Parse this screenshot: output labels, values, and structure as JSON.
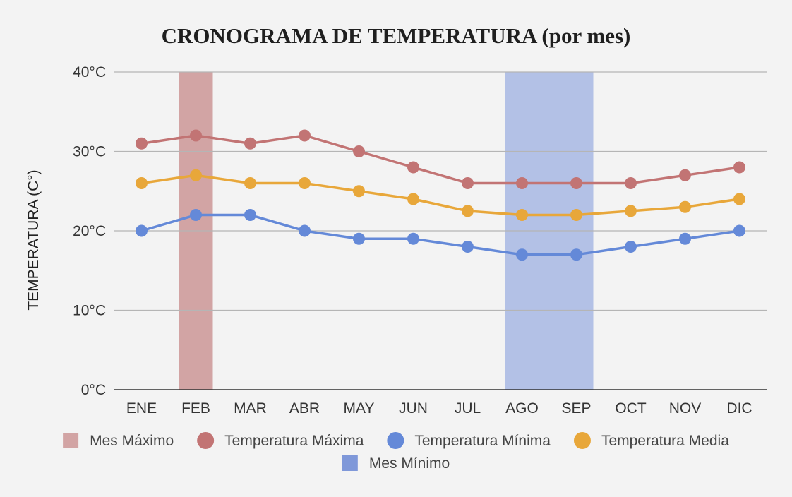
{
  "chart_data": {
    "type": "line",
    "title": "CRONOGRAMA DE TEMPERATURA (por mes)",
    "ylabel": "TEMPERATURA (C°)",
    "xlabel": "",
    "categories": [
      "ENE",
      "FEB",
      "MAR",
      "ABR",
      "MAY",
      "JUN",
      "JUL",
      "AGO",
      "SEP",
      "OCT",
      "NOV",
      "DIC"
    ],
    "ylim": [
      0,
      40
    ],
    "yticks": [
      0,
      10,
      20,
      30,
      40
    ],
    "ytick_labels": [
      "0°C",
      "10°C",
      "20°C",
      "30°C",
      "40°C"
    ],
    "grid": true,
    "legend_position": "bottom",
    "series": [
      {
        "name": "Temperatura Máxima",
        "color": "#c27474",
        "values": [
          31,
          32,
          31,
          32,
          30,
          28,
          26,
          26,
          26,
          26,
          27,
          28
        ]
      },
      {
        "name": "Temperatura Mínima",
        "color": "#6489d8",
        "values": [
          20,
          22,
          22,
          20,
          19,
          19,
          18,
          17,
          17,
          18,
          19,
          20
        ]
      },
      {
        "name": "Temperatura Media",
        "color": "#e8a73a",
        "values": [
          26,
          27,
          26,
          26,
          25,
          24,
          22.5,
          22,
          22,
          22.5,
          23,
          24
        ]
      }
    ],
    "highlights": [
      {
        "name": "Mes Máximo",
        "color": "#d2a4a4",
        "categories": [
          "FEB"
        ]
      },
      {
        "name": "Mes Mínimo",
        "color": "#b3c1e6",
        "categories": [
          "AGO",
          "SEP"
        ]
      }
    ],
    "legend": [
      {
        "name": "Mes Máximo",
        "marker": "square",
        "color": "#d2a4a4"
      },
      {
        "name": "Temperatura Máxima",
        "marker": "circle",
        "color": "#c27474"
      },
      {
        "name": "Temperatura Mínima",
        "marker": "circle",
        "color": "#6489d8"
      },
      {
        "name": "Temperatura Media",
        "marker": "circle",
        "color": "#e8a73a"
      },
      {
        "name": "Mes Mínimo",
        "marker": "square",
        "color": "#7f98d9"
      }
    ]
  }
}
